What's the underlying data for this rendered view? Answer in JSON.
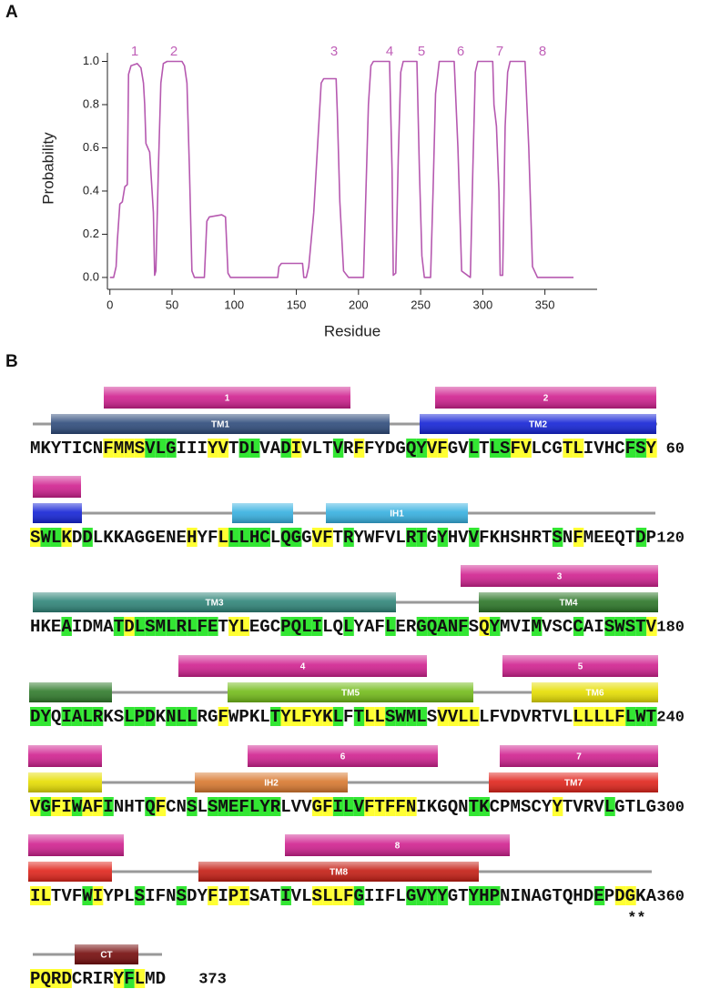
{
  "chart_data": {
    "type": "line",
    "panel_label": "A",
    "xlabel": "Residue",
    "ylabel": "Probability",
    "x": [
      0,
      3,
      5,
      6,
      8,
      10,
      12,
      14,
      15,
      17,
      22,
      25,
      27,
      28,
      29,
      32,
      35,
      36,
      37,
      39,
      41,
      43,
      46,
      58,
      60,
      62,
      64,
      66,
      68,
      76,
      78,
      80,
      90,
      93,
      95,
      97,
      135,
      136,
      138,
      155,
      156,
      158,
      160,
      164,
      167,
      170,
      172,
      182,
      183,
      185,
      188,
      192,
      204,
      206,
      208,
      210,
      212,
      225,
      227,
      228,
      230,
      232,
      234,
      236,
      247,
      249,
      251,
      253,
      258,
      260,
      262,
      265,
      277,
      280,
      283,
      290,
      292,
      294,
      296,
      308,
      309,
      311,
      313,
      314,
      316,
      318,
      320,
      322,
      334,
      337,
      340,
      344,
      373
    ],
    "values": [
      0,
      0,
      0.05,
      0.17,
      0.34,
      0.35,
      0.42,
      0.43,
      0.94,
      0.98,
      0.99,
      0.97,
      0.9,
      0.8,
      0.62,
      0.58,
      0.3,
      0.01,
      0.03,
      0.5,
      0.9,
      0.99,
      1,
      1,
      0.98,
      0.9,
      0.5,
      0.03,
      0,
      0,
      0.26,
      0.28,
      0.29,
      0.28,
      0.02,
      0,
      0,
      0.05,
      0.065,
      0.065,
      0,
      0,
      0.05,
      0.3,
      0.6,
      0.9,
      0.92,
      0.92,
      0.76,
      0.35,
      0.03,
      0,
      0,
      0.4,
      0.8,
      0.98,
      1,
      1,
      0.5,
      0.01,
      0.02,
      0.55,
      0.95,
      1,
      1,
      0.5,
      0.1,
      0,
      0,
      0.4,
      0.85,
      1,
      1,
      0.6,
      0.03,
      0,
      0.5,
      0.95,
      1,
      1,
      0.8,
      0.7,
      0.4,
      0.01,
      0.01,
      0.7,
      0.95,
      1,
      1,
      0.6,
      0.05,
      0,
      0
    ],
    "color": "#b659b0",
    "xlim": [
      -2,
      392
    ],
    "ylim": [
      -0.055,
      1.04
    ],
    "xticks": [
      0,
      50,
      100,
      150,
      200,
      250,
      300,
      350
    ],
    "yticks": [
      {
        "value": 0,
        "label": "0.0"
      },
      0.2,
      0.4,
      0.6,
      0.8,
      {
        "value": 1,
        "label": "1.0"
      }
    ],
    "annotations": [
      "1",
      "2",
      "3",
      "4",
      "5",
      "6",
      "7",
      "8"
    ]
  },
  "sequence_panel": {
    "label": "B",
    "segments": [
      "1",
      "2",
      "3",
      "4",
      "5",
      "6",
      "7",
      "8"
    ],
    "domains": [
      "TM1",
      "TM2",
      "IH1",
      "TM3",
      "TM4",
      "TM5",
      "TM6",
      "IH2",
      "TM7",
      "TM8",
      "CT"
    ],
    "rows": [
      {
        "residues": "MKYTICNFMMSVLGIIIYVTDLVADIVLTVRFFYDGQYVFGVLTLSFVLCGTLIVHCFSY",
        "number": "60",
        "conservation": ".......yyyyggg...yy.gg..gy...g.y....ggyy..g.ggyy...yy....ggy"
      },
      {
        "residues": "SWLKDDLKKAGGENEHYFLLLHCLQGGVFTRYWFVLRTGYHVVFKHSHRTSNFMEEQTDP",
        "number": "120",
        "conservation": "yggy.g.........y..ygggg.gg.yy.g.....gg.g..g.......g.y.....g."
      },
      {
        "residues": "HKEAIDMATDLSMLRLFETYLEGCPQLILQLYAFLERGQANFSQYMVIMVSCCAISWSTV",
        "number": "180",
        "conservation": "...g....gygggggggg.yy...gggg..g...g..ggggg.yg...g...g..ggggy"
      },
      {
        "residues": "DYQIALRKSLPDKNLLRGFWPKLTYLFYKLFTLLSWMLSVVLLLFVDVRTVLLLLLFLWT",
        "number": "240",
        "conservation": "gg.gggg..ggg.ggg..y....gyyyyyg.gyygggg.yyyy.........yyyyyggg"
      },
      {
        "residues": "VGFIWAFINHTQFCNSLSMEFLYRLVVGFILVFTFFNIKGQNTKCPMSCYYTVRVLGTLG",
        "number": "300",
        "conservation": "ygyygyyg...gy..g.ggggggg...yygggyyyyy.....gg......y....g...."
      },
      {
        "residues": "ILTVFWIYPLSIFNSDYFIPISATIVLSLLFGIIFLGVYYGTYHPNINAGTQHDEPDGKA",
        "number": "360",
        "conservation": "yy...gy...g...g..y.yy...g..yyyyg....gggg..ggg.........g.yy.."
      },
      {
        "residues": "PQRDCRIRYFLMD",
        "number": "373",
        "conservation": "yyyy....ygy.."
      }
    ],
    "marker": "**"
  }
}
